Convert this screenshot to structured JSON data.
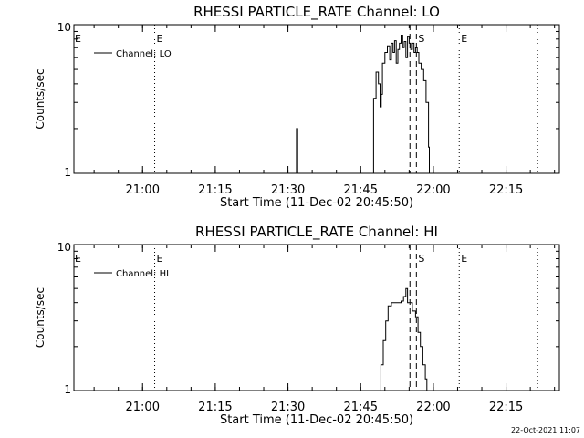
{
  "footer_timestamp": "22-Oct-2021 11:07",
  "chart_data": [
    {
      "type": "line",
      "title": "RHESSI PARTICLE_RATE Channel: LO",
      "xlabel": "Start Time (11-Dec-02 20:45:50)",
      "ylabel": "Counts/sec",
      "y_scale": "log",
      "ylim": [
        1,
        10
      ],
      "y_ticks": [
        {
          "value": 1,
          "label": "1"
        },
        {
          "value": 10,
          "label": "10"
        }
      ],
      "xlim": [
        "20:45:50",
        "22:26:00"
      ],
      "x_ticks": [
        "21:00",
        "21:15",
        "21:30",
        "21:45",
        "22:00",
        "22:15"
      ],
      "legend": {
        "placement": "top-left",
        "label": "Channel: LO"
      },
      "markers": [
        {
          "time": "21:02:30",
          "label": "E",
          "style": "dotted"
        },
        {
          "time": "21:55:10",
          "label": "",
          "style": "dashed"
        },
        {
          "time": "21:56:30",
          "label": "S",
          "style": "dashed"
        },
        {
          "time": "22:05:20",
          "label": "E",
          "style": "dotted"
        },
        {
          "time": "22:21:30",
          "label": "",
          "style": "dotted"
        }
      ],
      "series": [
        {
          "name": "Channel: LO",
          "points": [
            [
              "20:45:50",
              0.9
            ],
            [
              "21:31:30",
              0.9
            ],
            [
              "21:31:45",
              2.0
            ],
            [
              "21:32:00",
              0.9
            ],
            [
              "21:47:20",
              0.9
            ],
            [
              "21:47:40",
              3.2
            ],
            [
              "21:48:10",
              4.8
            ],
            [
              "21:48:40",
              4.0
            ],
            [
              "21:49:00",
              2.8
            ],
            [
              "21:49:15",
              3.4
            ],
            [
              "21:49:30",
              5.5
            ],
            [
              "21:50:00",
              6.5
            ],
            [
              "21:50:30",
              7.2
            ],
            [
              "21:51:00",
              5.8
            ],
            [
              "21:51:20",
              7.5
            ],
            [
              "21:51:40",
              6.5
            ],
            [
              "21:52:00",
              7.8
            ],
            [
              "21:52:20",
              5.5
            ],
            [
              "21:52:40",
              6.8
            ],
            [
              "21:53:00",
              7.5
            ],
            [
              "21:53:20",
              8.5
            ],
            [
              "21:53:40",
              7.0
            ],
            [
              "21:54:00",
              7.7
            ],
            [
              "21:54:20",
              6.0
            ],
            [
              "21:54:40",
              8.3
            ],
            [
              "21:55:00",
              7.5
            ],
            [
              "21:55:20",
              6.8
            ],
            [
              "21:55:40",
              7.5
            ],
            [
              "21:56:00",
              6.5
            ],
            [
              "21:56:20",
              7.0
            ],
            [
              "21:56:40",
              6.5
            ],
            [
              "21:57:00",
              5.5
            ],
            [
              "21:57:30",
              5.0
            ],
            [
              "21:58:00",
              4.2
            ],
            [
              "21:58:30",
              3.0
            ],
            [
              "21:59:00",
              1.5
            ],
            [
              "21:59:10",
              0.9
            ],
            [
              "22:26:00",
              0.9
            ]
          ]
        }
      ]
    },
    {
      "type": "line",
      "title": "RHESSI PARTICLE_RATE Channel: HI",
      "xlabel": "Start Time (11-Dec-02 20:45:50)",
      "ylabel": "Counts/sec",
      "y_scale": "log",
      "ylim": [
        1,
        10
      ],
      "y_ticks": [
        {
          "value": 1,
          "label": "1"
        },
        {
          "value": 10,
          "label": "10"
        }
      ],
      "xlim": [
        "20:45:50",
        "22:26:00"
      ],
      "x_ticks": [
        "21:00",
        "21:15",
        "21:30",
        "21:45",
        "22:00",
        "22:15"
      ],
      "legend": {
        "placement": "top-left",
        "label": "Channel: HI"
      },
      "markers": [
        {
          "time": "21:02:30",
          "label": "E",
          "style": "dotted"
        },
        {
          "time": "21:55:10",
          "label": "",
          "style": "dashed"
        },
        {
          "time": "21:56:30",
          "label": "S",
          "style": "dashed"
        },
        {
          "time": "22:05:20",
          "label": "E",
          "style": "dotted"
        },
        {
          "time": "22:21:30",
          "label": "",
          "style": "dotted"
        }
      ],
      "series": [
        {
          "name": "Channel: HI",
          "points": [
            [
              "20:45:50",
              0.9
            ],
            [
              "21:49:00",
              0.9
            ],
            [
              "21:49:10",
              1.5
            ],
            [
              "21:49:40",
              2.2
            ],
            [
              "21:50:10",
              3.0
            ],
            [
              "21:50:40",
              3.8
            ],
            [
              "21:51:20",
              4.0
            ],
            [
              "21:52:00",
              4.0
            ],
            [
              "21:52:40",
              4.0
            ],
            [
              "21:53:20",
              4.1
            ],
            [
              "21:53:50",
              4.4
            ],
            [
              "21:54:20",
              5.0
            ],
            [
              "21:54:40",
              4.0
            ],
            [
              "21:55:10",
              4.0
            ],
            [
              "21:55:40",
              3.5
            ],
            [
              "21:56:20",
              3.2
            ],
            [
              "21:56:50",
              2.5
            ],
            [
              "21:57:20",
              2.0
            ],
            [
              "21:57:50",
              1.5
            ],
            [
              "21:58:20",
              1.2
            ],
            [
              "21:58:40",
              0.9
            ],
            [
              "22:26:00",
              0.9
            ]
          ]
        }
      ]
    }
  ]
}
